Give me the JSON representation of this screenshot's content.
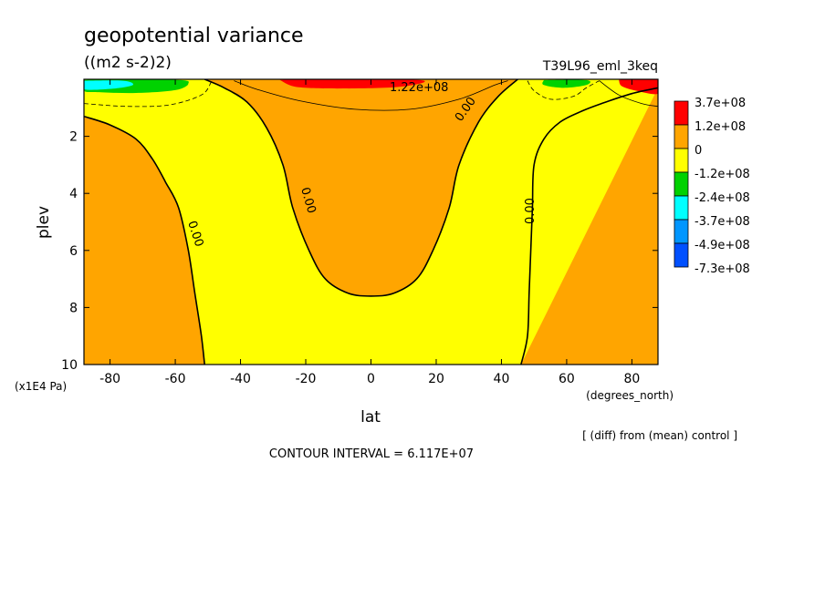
{
  "chart_data": {
    "type": "heatmap",
    "title": "geopotential variance",
    "units": "((m2 s-2)2)",
    "experiment": "T39L96_eml_3keq",
    "xlabel": "lat",
    "xunits": "(degrees_north)",
    "ylabel": "plev",
    "yunits": "(x1E4 Pa)",
    "xlim": [
      -88,
      88
    ],
    "ylim": [
      10,
      0
    ],
    "x_ticks": [
      -80,
      -60,
      -40,
      -20,
      0,
      20,
      40,
      60,
      80
    ],
    "y_ticks": [
      2,
      4,
      6,
      8,
      10
    ],
    "colorbar_levels": [
      "3.7e+08",
      "1.2e+08",
      "0",
      "-1.2e+08",
      "-2.4e+08",
      "-3.7e+08",
      "-4.9e+08",
      "-7.3e+08"
    ],
    "colors": [
      "#ff0000",
      "#ffa500",
      "#ffff00",
      "#00d200",
      "#00ffff",
      "#0096ff",
      "#0050ff"
    ],
    "contour_labels": [
      "0.00",
      "0.00",
      "0.00",
      "0.00",
      "1.22e+08"
    ],
    "contour_interval_text": "CONTOUR INTERVAL = 6.117E+07",
    "note": "[ (diff) from (mean) control ]",
    "zero_contours": [
      {
        "name": "sh-zero",
        "points": [
          [
            -88,
            1.3
          ],
          [
            -80,
            1.6
          ],
          [
            -72,
            2.1
          ],
          [
            -67,
            2.8
          ],
          [
            -63,
            3.6
          ],
          [
            -59,
            4.5
          ],
          [
            -56,
            6
          ],
          [
            -54,
            7.5
          ],
          [
            -52,
            9
          ],
          [
            -51,
            10
          ]
        ]
      },
      {
        "name": "center-zero",
        "points": [
          [
            -51,
            0
          ],
          [
            -45,
            0.3
          ],
          [
            -38,
            0.8
          ],
          [
            -32,
            1.7
          ],
          [
            -27,
            3
          ],
          [
            -24,
            4.5
          ],
          [
            -19,
            6
          ],
          [
            -14,
            7
          ],
          [
            -7,
            7.5
          ],
          [
            0,
            7.6
          ],
          [
            7,
            7.5
          ],
          [
            14,
            7
          ],
          [
            19,
            6
          ],
          [
            24,
            4.5
          ],
          [
            27,
            3
          ],
          [
            33,
            1.5
          ],
          [
            39,
            0.6
          ],
          [
            45,
            0
          ]
        ]
      },
      {
        "name": "nh-zero",
        "points": [
          [
            46,
            10
          ],
          [
            48,
            9
          ],
          [
            48.5,
            7.5
          ],
          [
            49,
            6
          ],
          [
            49.5,
            4.5
          ],
          [
            50,
            3
          ],
          [
            53,
            2.1
          ],
          [
            58,
            1.5
          ],
          [
            65,
            1.1
          ],
          [
            72,
            0.8
          ],
          [
            80,
            0.5
          ],
          [
            88,
            0.3
          ]
        ]
      }
    ]
  }
}
